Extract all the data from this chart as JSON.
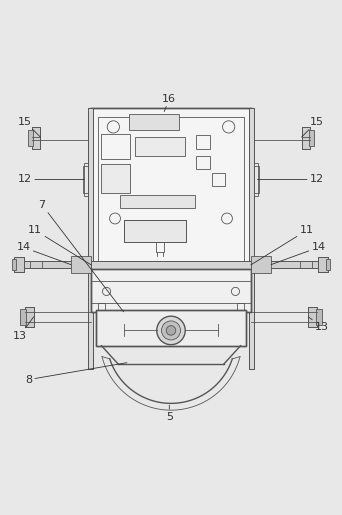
{
  "bg_color": "#e8e8e8",
  "line_color": "#555555",
  "label_color": "#333333"
}
